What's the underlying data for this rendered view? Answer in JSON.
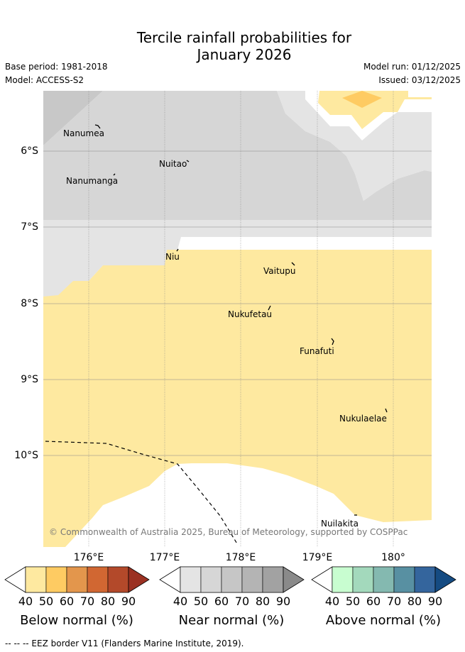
{
  "title": {
    "line1": "Tercile rainfall probabilities for",
    "line2": "January 2026"
  },
  "meta": {
    "base_period": "Base period: 1981-2018",
    "model": "Model: ACCESS-S2",
    "model_run": "Model run: 01/12/2025",
    "issued": "Issued: 03/12/2025"
  },
  "axes": {
    "lat_labels": [
      "6°S",
      "7°S",
      "8°S",
      "9°S",
      "10°S"
    ],
    "lon_labels": [
      "176°E",
      "177°E",
      "178°E",
      "179°E",
      "180°"
    ]
  },
  "places": [
    "Nanumea",
    "Nuitao",
    "Nanumanga",
    "Niu",
    "Vaitupu",
    "Nukufetau",
    "Funafuti",
    "Nukulaelae",
    "Nuilakita"
  ],
  "copyright": "© Commonwealth of Australia 2025, Bureau of Meteorology, supported by COSPPac",
  "colorbars": [
    {
      "title": "Below normal (%)",
      "ticks": [
        "40",
        "50",
        "60",
        "70",
        "80",
        "90"
      ],
      "colors": [
        "#fee9a0",
        "#fecb62",
        "#e3964c",
        "#d16732",
        "#b3492a",
        "#9b3122"
      ]
    },
    {
      "title": "Near normal (%)",
      "ticks": [
        "40",
        "50",
        "60",
        "70",
        "80",
        "90"
      ],
      "colors": [
        "#e4e4e4",
        "#d6d6d6",
        "#c6c6c6",
        "#b4b4b4",
        "#a2a2a2",
        "#8a8a8a"
      ]
    },
    {
      "title": "Above normal (%)",
      "ticks": [
        "40",
        "50",
        "60",
        "70",
        "80",
        "90"
      ],
      "colors": [
        "#c8fdd0",
        "#a3d9bc",
        "#84b9b0",
        "#5890a2",
        "#34659d",
        "#154b82"
      ]
    }
  ],
  "footer": "--  --  -- EEZ border V11 (Flanders Marine Institute, 2019)."
}
